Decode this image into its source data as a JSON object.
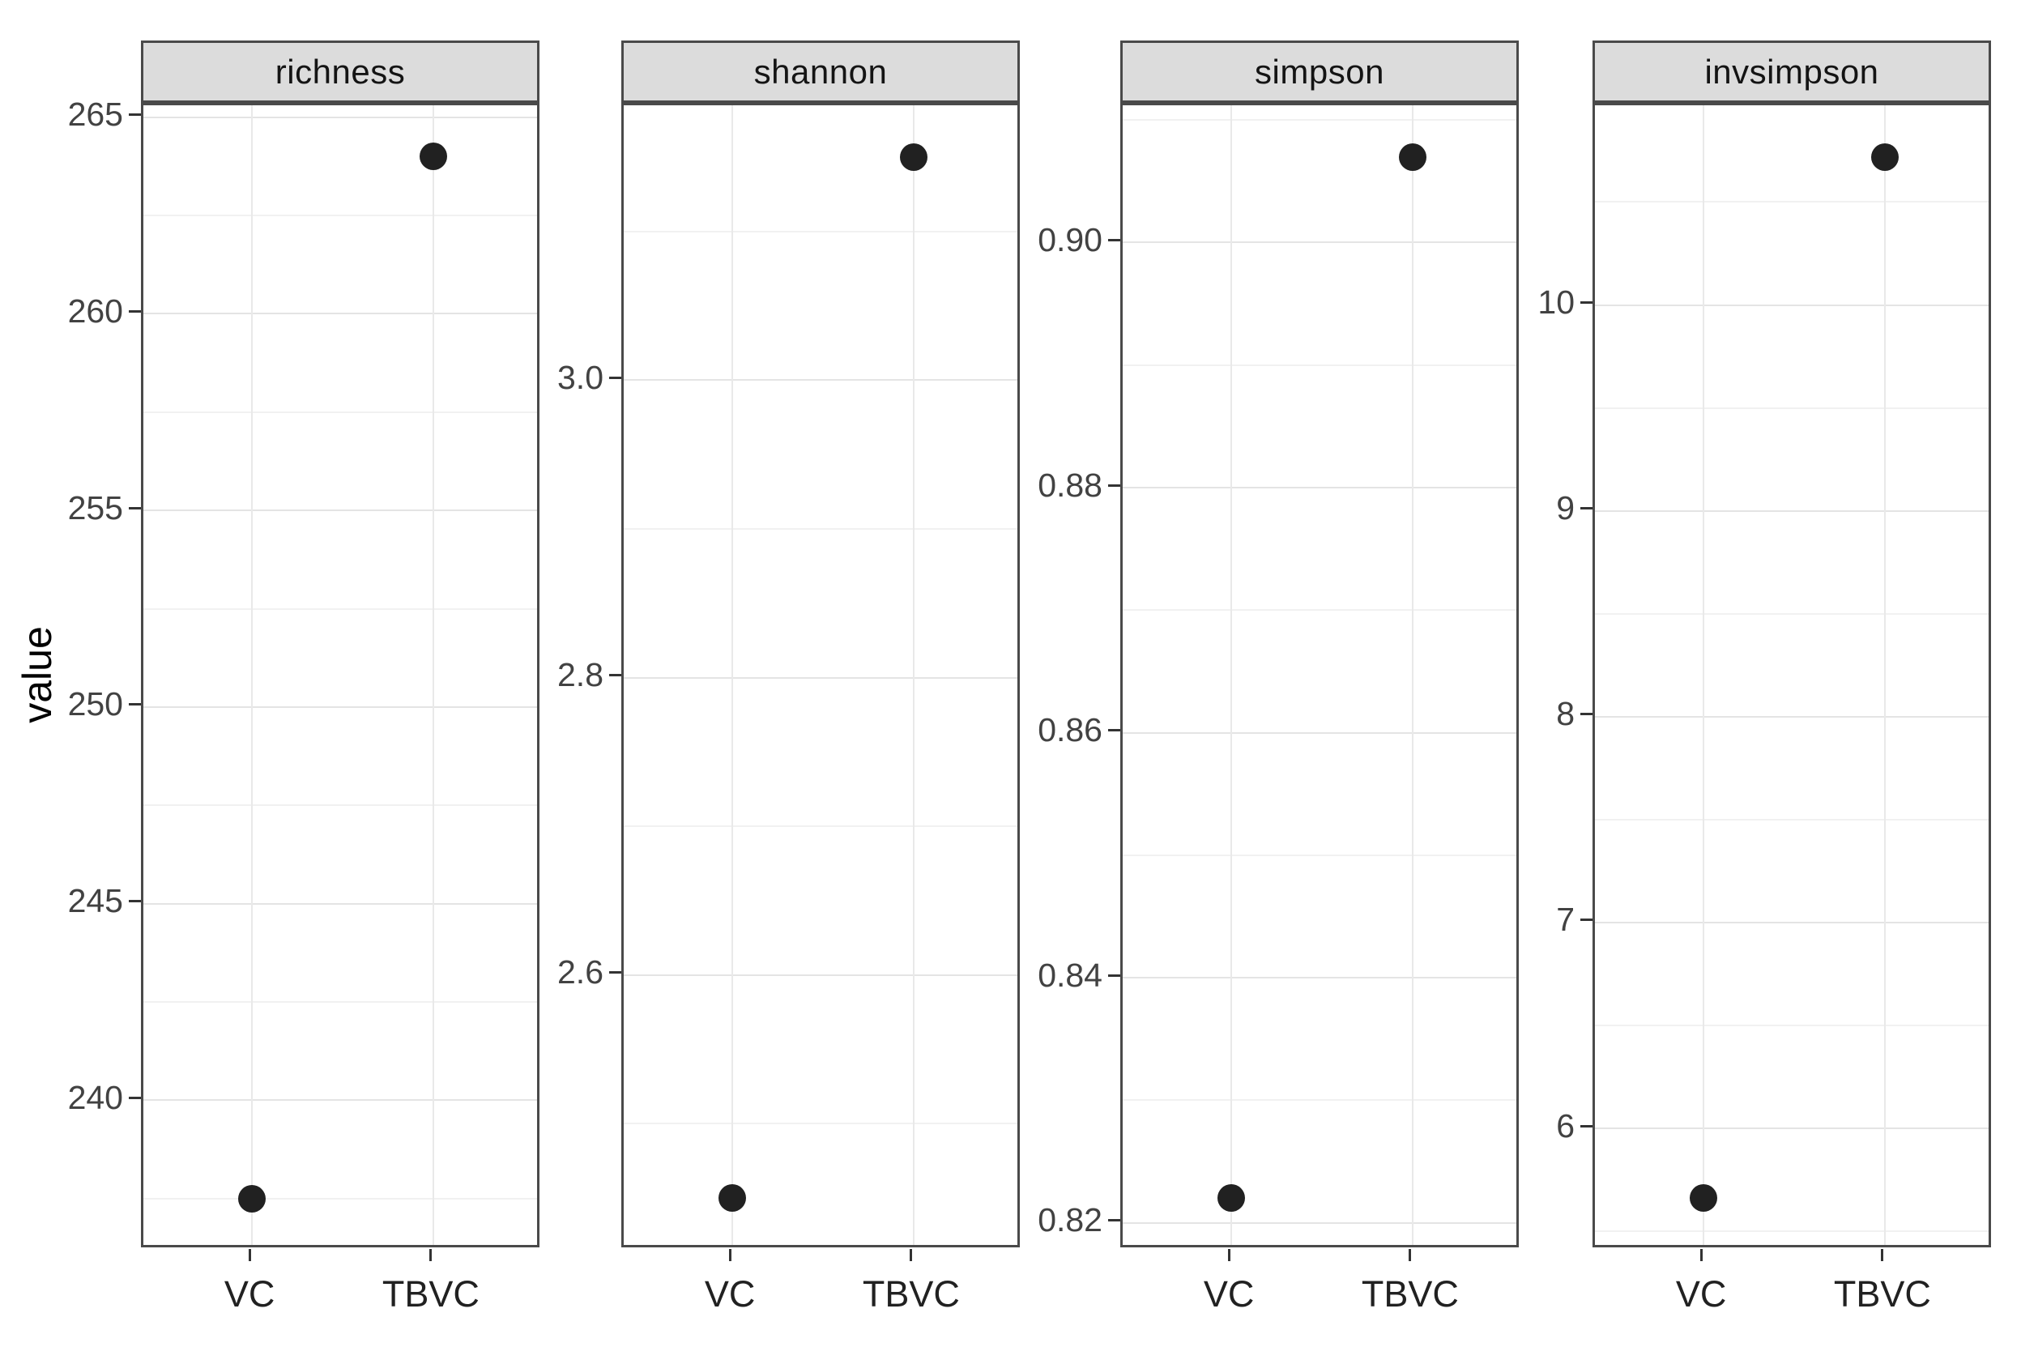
{
  "figure": {
    "y_axis_title": "value",
    "x_categories": [
      "VC",
      "TBVC"
    ],
    "facet_labels": [
      "richness",
      "shannon",
      "simpson",
      "invsimpson"
    ],
    "colors": {
      "background": "#ffffff",
      "strip_fill": "#dcdcdc",
      "strip_border": "#4a4a4a",
      "panel_border": "#4a4a4a",
      "grid_major": "#e4e4e4",
      "grid_minor": "#f1f1f1",
      "point": "#212121",
      "tick_label": "#424242",
      "category_label": "#212121",
      "strip_text": "#141414",
      "axis_title": "#000000"
    }
  },
  "chart_data": [
    {
      "type": "scatter",
      "title": "richness",
      "categories": [
        "VC",
        "TBVC"
      ],
      "values": [
        237.5,
        264
      ],
      "ytick_values": [
        240,
        245,
        250,
        255,
        260,
        265
      ],
      "ytick_labels": [
        "240",
        "245",
        "250",
        "255",
        "260",
        "265"
      ],
      "ylim": [
        236.2,
        265.3
      ],
      "xlabel": "",
      "ylabel": "value",
      "grid": "on",
      "legend": "none"
    },
    {
      "type": "scatter",
      "title": "shannon",
      "categories": [
        "VC",
        "TBVC"
      ],
      "values": [
        2.45,
        3.15
      ],
      "ytick_values": [
        2.6,
        2.8,
        3.0
      ],
      "ytick_labels": [
        "2.6",
        "2.8",
        "3.0"
      ],
      "ylim": [
        2.415,
        3.185
      ],
      "xlabel": "",
      "ylabel": "value",
      "grid": "on",
      "legend": "none"
    },
    {
      "type": "scatter",
      "title": "simpson",
      "categories": [
        "VC",
        "TBVC"
      ],
      "values": [
        0.822,
        0.907
      ],
      "ytick_values": [
        0.82,
        0.84,
        0.86,
        0.88,
        0.9
      ],
      "ytick_labels": [
        "0.82",
        "0.84",
        "0.86",
        "0.88",
        "0.90"
      ],
      "ylim": [
        0.8178,
        0.9112
      ],
      "xlabel": "",
      "ylabel": "value",
      "grid": "on",
      "legend": "none"
    },
    {
      "type": "scatter",
      "title": "invsimpson",
      "categories": [
        "VC",
        "TBVC"
      ],
      "values": [
        5.66,
        10.72
      ],
      "ytick_values": [
        6,
        7,
        8,
        9,
        10
      ],
      "ytick_labels": [
        "6",
        "7",
        "8",
        "9",
        "10"
      ],
      "ylim": [
        5.41,
        10.97
      ],
      "xlabel": "",
      "ylabel": "value",
      "grid": "on",
      "legend": "none"
    }
  ]
}
